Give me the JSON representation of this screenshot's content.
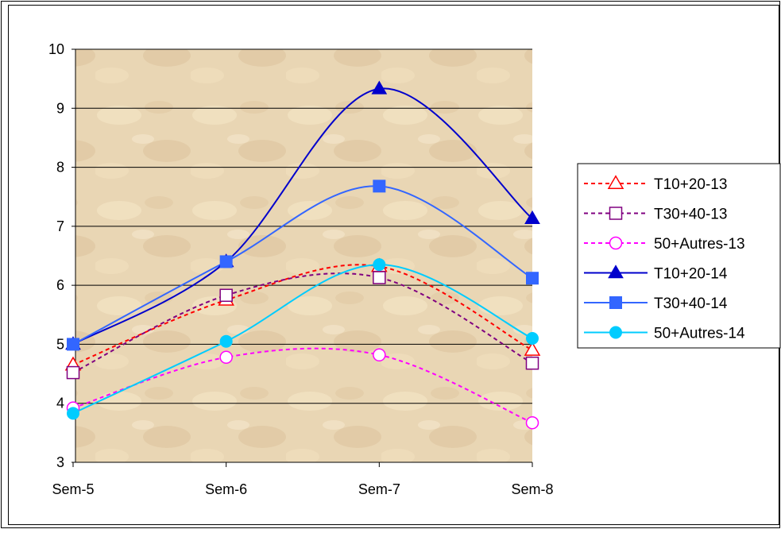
{
  "chart_data": {
    "type": "line",
    "categories": [
      "Sem-5",
      "Sem-6",
      "Sem-7",
      "Sem-8"
    ],
    "ylim": [
      3,
      10
    ],
    "yticks": [
      "3",
      "4",
      "5",
      "6",
      "7",
      "8",
      "9",
      "10"
    ],
    "grid": true,
    "legend_position": "right",
    "plot_background": "parchment",
    "series": [
      {
        "name": "T10+20-13",
        "values": [
          4.65,
          5.75,
          6.32,
          4.9
        ],
        "color": "#ff0000",
        "dashed": true,
        "marker": "triangle-open"
      },
      {
        "name": "T30+40-13",
        "values": [
          4.52,
          5.83,
          6.13,
          4.68
        ],
        "color": "#800080",
        "dashed": true,
        "marker": "square-open"
      },
      {
        "name": "50+Autres-13",
        "values": [
          3.92,
          4.78,
          4.82,
          3.67
        ],
        "color": "#ff00ff",
        "dashed": true,
        "marker": "circle-open"
      },
      {
        "name": "T10+20-14",
        "values": [
          5.0,
          6.4,
          9.33,
          7.13
        ],
        "color": "#0000cc",
        "dashed": false,
        "marker": "triangle-filled"
      },
      {
        "name": "T30+40-14",
        "values": [
          5.0,
          6.4,
          7.68,
          6.12
        ],
        "color": "#3366ff",
        "dashed": false,
        "marker": "square-filled"
      },
      {
        "name": "50+Autres-14",
        "values": [
          3.83,
          5.05,
          6.35,
          5.1
        ],
        "color": "#00ccff",
        "dashed": false,
        "marker": "circle-filled"
      }
    ]
  }
}
